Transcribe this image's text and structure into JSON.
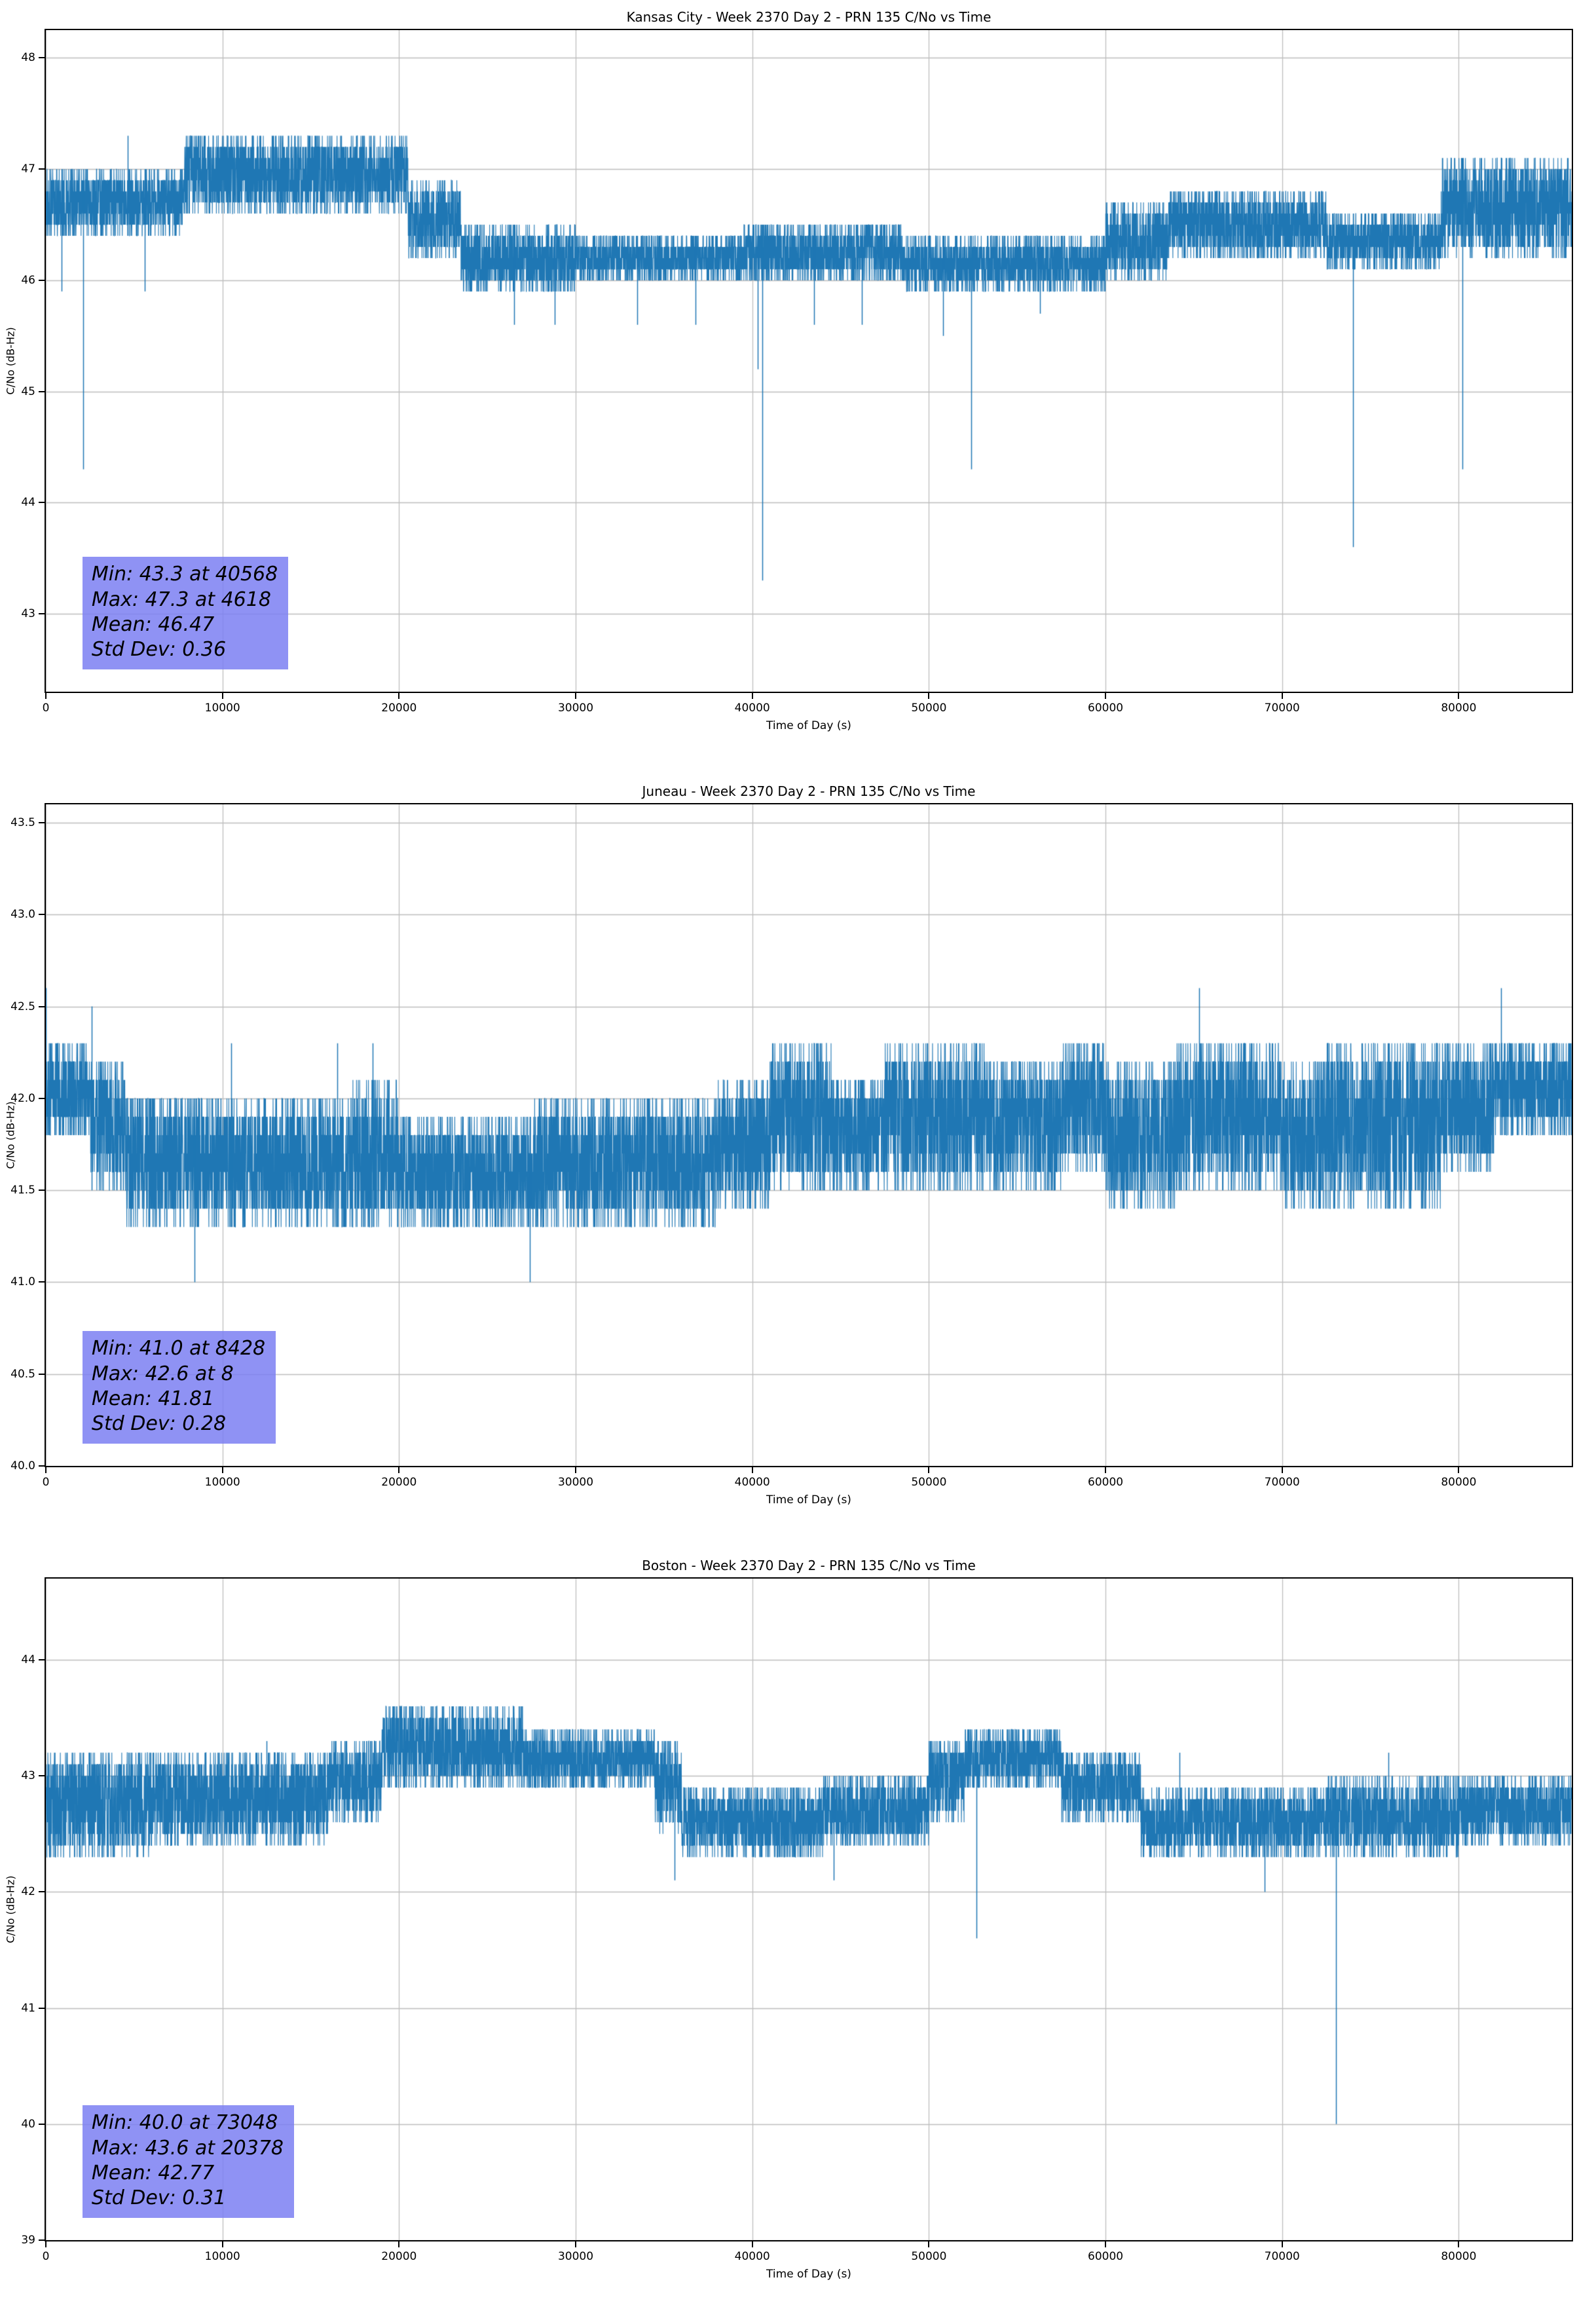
{
  "style": {
    "background": "#ffffff",
    "line_color": "#1f77b4",
    "grid_color": "#bdbdbd",
    "spine_color": "#000000",
    "stats_box_color": "rgba(123,127,242,0.85)",
    "stats_text_color": "#000000"
  },
  "chart_data": [
    {
      "type": "line",
      "station": "Kansas City",
      "title": "Kansas City - Week 2370 Day 2 - PRN 135 C/No vs Time",
      "xlabel": "Time of Day (s)",
      "ylabel": "C/No (dB-Hz)",
      "xlim": [
        0,
        86400
      ],
      "ylim": [
        42.3,
        48.25
      ],
      "xticks": [
        0,
        10000,
        20000,
        30000,
        40000,
        50000,
        60000,
        70000,
        80000
      ],
      "xtick_labels": [
        "0",
        "10000",
        "20000",
        "30000",
        "40000",
        "50000",
        "60000",
        "70000",
        "80000"
      ],
      "yticks": [
        43,
        44,
        45,
        46,
        47,
        48
      ],
      "ytick_labels": [
        "43",
        "44",
        "45",
        "46",
        "47",
        "48"
      ],
      "grid": true,
      "legend": "none",
      "stats": {
        "min": 43.3,
        "min_time_s": 40568,
        "max": 47.3,
        "max_time_s": 4618,
        "mean": 46.47,
        "std_dev": 0.36
      },
      "stats_lines": [
        "Min: 43.3 at 40568",
        "Max: 47.3 at 4618",
        "Mean: 46.47",
        "Std Dev: 0.36"
      ],
      "band_segments": [
        [
          0,
          7800,
          46.4,
          47.0
        ],
        [
          7800,
          20500,
          46.6,
          47.3
        ],
        [
          20500,
          23500,
          46.2,
          46.9
        ],
        [
          23500,
          30000,
          45.9,
          46.5
        ],
        [
          30000,
          39500,
          46.0,
          46.4
        ],
        [
          39500,
          48500,
          46.0,
          46.5
        ],
        [
          48500,
          60000,
          45.9,
          46.4
        ],
        [
          60000,
          63500,
          46.0,
          46.7
        ],
        [
          63500,
          72500,
          46.2,
          46.8
        ],
        [
          72500,
          79000,
          46.1,
          46.6
        ],
        [
          79000,
          86400,
          46.2,
          47.1
        ]
      ],
      "spikes": [
        [
          900,
          45.9
        ],
        [
          2100,
          44.3
        ],
        [
          4618,
          47.3
        ],
        [
          5600,
          45.9
        ],
        [
          26500,
          45.6
        ],
        [
          28800,
          45.6
        ],
        [
          33500,
          45.6
        ],
        [
          36800,
          45.6
        ],
        [
          40300,
          45.2
        ],
        [
          40568,
          43.3
        ],
        [
          43500,
          45.6
        ],
        [
          46200,
          45.6
        ],
        [
          50800,
          45.5
        ],
        [
          52400,
          44.3
        ],
        [
          56300,
          45.7
        ],
        [
          74000,
          43.6
        ],
        [
          80200,
          44.3
        ]
      ]
    },
    {
      "type": "line",
      "station": "Juneau",
      "title": "Juneau - Week 2370 Day 2 - PRN 135 C/No vs Time",
      "xlabel": "Time of Day (s)",
      "ylabel": "C/No (dB-Hz)",
      "xlim": [
        0,
        86400
      ],
      "ylim": [
        40.0,
        43.6
      ],
      "xticks": [
        0,
        10000,
        20000,
        30000,
        40000,
        50000,
        60000,
        70000,
        80000
      ],
      "xtick_labels": [
        "0",
        "10000",
        "20000",
        "30000",
        "40000",
        "50000",
        "60000",
        "70000",
        "80000"
      ],
      "yticks": [
        40.0,
        40.5,
        41.0,
        41.5,
        42.0,
        42.5,
        43.0,
        43.5
      ],
      "ytick_labels": [
        "40.0",
        "40.5",
        "41.0",
        "41.5",
        "42.0",
        "42.5",
        "43.0",
        "43.5"
      ],
      "grid": true,
      "legend": "none",
      "stats": {
        "min": 41.0,
        "min_time_s": 8428,
        "max": 42.6,
        "max_time_s": 8,
        "mean": 41.81,
        "std_dev": 0.28
      },
      "stats_lines": [
        "Min: 41.0 at 8428",
        "Max: 42.6 at 8",
        "Mean: 41.81",
        "Std Dev: 0.28"
      ],
      "band_segments": [
        [
          0,
          2500,
          41.8,
          42.3
        ],
        [
          2500,
          4500,
          41.5,
          42.2
        ],
        [
          4500,
          17000,
          41.3,
          42.0
        ],
        [
          17000,
          20000,
          41.3,
          42.1
        ],
        [
          20000,
          27500,
          41.3,
          41.9
        ],
        [
          27500,
          38000,
          41.3,
          42.0
        ],
        [
          38000,
          41000,
          41.4,
          42.1
        ],
        [
          41000,
          44500,
          41.5,
          42.3
        ],
        [
          44500,
          47500,
          41.5,
          42.1
        ],
        [
          47500,
          53500,
          41.5,
          42.3
        ],
        [
          53500,
          57500,
          41.5,
          42.2
        ],
        [
          57500,
          60000,
          41.6,
          42.3
        ],
        [
          60000,
          64000,
          41.4,
          42.2
        ],
        [
          64000,
          70000,
          41.5,
          42.3
        ],
        [
          70000,
          72500,
          41.4,
          42.2
        ],
        [
          72500,
          79000,
          41.4,
          42.3
        ],
        [
          79000,
          82000,
          41.6,
          42.3
        ],
        [
          82000,
          86400,
          41.8,
          42.3
        ]
      ],
      "spikes": [
        [
          8,
          42.6
        ],
        [
          2600,
          42.5
        ],
        [
          8428,
          41.0
        ],
        [
          10500,
          42.3
        ],
        [
          16500,
          42.3
        ],
        [
          18500,
          42.3
        ],
        [
          27400,
          41.0
        ],
        [
          65300,
          42.6
        ],
        [
          82400,
          42.6
        ]
      ]
    },
    {
      "type": "line",
      "station": "Boston",
      "title": "Boston - Week 2370 Day 2 - PRN 135 C/No vs Time",
      "xlabel": "Time of Day (s)",
      "ylabel": "C/No (dB-Hz)",
      "xlim": [
        0,
        86400
      ],
      "ylim": [
        39.0,
        44.7
      ],
      "xticks": [
        0,
        10000,
        20000,
        30000,
        40000,
        50000,
        60000,
        70000,
        80000
      ],
      "xtick_labels": [
        "0",
        "10000",
        "20000",
        "30000",
        "40000",
        "50000",
        "60000",
        "70000",
        "80000"
      ],
      "yticks": [
        39,
        40,
        41,
        42,
        43,
        44
      ],
      "ytick_labels": [
        "39",
        "40",
        "41",
        "42",
        "43",
        "44"
      ],
      "grid": true,
      "legend": "none",
      "stats": {
        "min": 40.0,
        "min_time_s": 73048,
        "max": 43.6,
        "max_time_s": 20378,
        "mean": 42.77,
        "std_dev": 0.31
      },
      "stats_lines": [
        "Min: 40.0 at 73048",
        "Max: 43.6 at 20378",
        "Mean: 42.77",
        "Std Dev: 0.31"
      ],
      "band_segments": [
        [
          0,
          6000,
          42.3,
          43.2
        ],
        [
          6000,
          16000,
          42.4,
          43.2
        ],
        [
          16000,
          19000,
          42.6,
          43.3
        ],
        [
          19000,
          27000,
          42.9,
          43.6
        ],
        [
          27000,
          34500,
          42.9,
          43.4
        ],
        [
          34500,
          36000,
          42.5,
          43.3
        ],
        [
          36000,
          44000,
          42.3,
          42.9
        ],
        [
          44000,
          50000,
          42.4,
          43.0
        ],
        [
          50000,
          52000,
          42.6,
          43.3
        ],
        [
          52000,
          57500,
          42.9,
          43.4
        ],
        [
          57500,
          62000,
          42.6,
          43.2
        ],
        [
          62000,
          72500,
          42.3,
          42.9
        ],
        [
          72500,
          80000,
          42.3,
          43.0
        ],
        [
          80000,
          86400,
          42.4,
          43.0
        ]
      ],
      "spikes": [
        [
          12500,
          43.3
        ],
        [
          20378,
          43.6
        ],
        [
          35600,
          42.1
        ],
        [
          44600,
          42.1
        ],
        [
          52700,
          41.6
        ],
        [
          64200,
          43.2
        ],
        [
          69000,
          42.0
        ],
        [
          73048,
          40.0
        ],
        [
          76000,
          43.2
        ]
      ]
    }
  ]
}
